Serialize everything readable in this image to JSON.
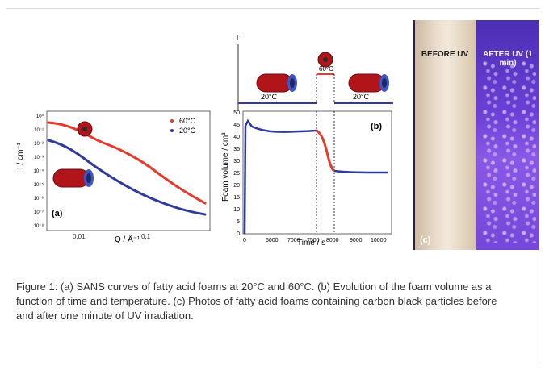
{
  "caption": "Figure 1: (a) SANS curves of fatty acid foams at 20°C and 60°C. (b) Evolution of the foam volume as a function of time and temperature. (c) Photos of fatty acid foams containing carbon black particles before and after one minute of UV irradiation.",
  "colors": {
    "red": "#e53a2c",
    "blue": "#2f3b9a",
    "cyl_red": "#b1151a",
    "cyl_blue": "#3f56c4"
  },
  "panel_a": {
    "label": "(a)",
    "xlabel": "Q / Å⁻¹",
    "ylabel": "I / cm⁻¹",
    "xticks": [
      "0,01",
      "0,1"
    ],
    "yticks": [
      "10⁰",
      "10⁻¹",
      "10⁻²",
      "10⁻³",
      "10⁻⁴",
      "10⁻⁵",
      "10⁻⁶",
      "10⁻⁷",
      "10⁻⁸"
    ],
    "legend": [
      "60°C",
      "20°C"
    ]
  },
  "panel_b": {
    "label": "(b)",
    "xlabel": "Time / s",
    "ylabel": "Foam volume / cm³",
    "xticks": [
      "0",
      "6000",
      "7000",
      "7500",
      "8000",
      "9000",
      "10000"
    ],
    "yticks": [
      "0",
      "5",
      "10",
      "15",
      "20",
      "25",
      "30",
      "35",
      "40",
      "45",
      "50"
    ],
    "temp_axis_label": "T",
    "temp_labels": [
      "20°C",
      "60°C",
      "20°C"
    ]
  },
  "panel_c": {
    "label": "(c)",
    "before": "BEFORE UV",
    "after": "AFTER UV (1 min)"
  },
  "chart_data": [
    {
      "type": "scatter",
      "title": "",
      "xlabel": "Q / Å⁻¹",
      "ylabel": "I / cm⁻¹",
      "xscale": "log",
      "yscale": "log",
      "series": [
        {
          "name": "60°C",
          "x": [
            0.005,
            0.01,
            0.02,
            0.05,
            0.1,
            0.2,
            0.3
          ],
          "y": [
            1.0,
            0.3,
            0.05,
            0.002,
            0.0003,
            5e-05,
            1e-05
          ]
        },
        {
          "name": "20°C",
          "x": [
            0.005,
            0.01,
            0.02,
            0.05,
            0.1,
            0.2,
            0.3
          ],
          "y": [
            0.02,
            0.004,
            0.0008,
            6e-05,
            1e-05,
            4e-07,
            8e-08
          ]
        }
      ]
    },
    {
      "type": "scatter",
      "title": "",
      "xlabel": "Time / s",
      "ylabel": "Foam volume / cm³",
      "xlim": [
        0,
        10000
      ],
      "ylim": [
        0,
        50
      ],
      "series": [
        {
          "name": "",
          "x": [
            0,
            200,
            1000,
            3000,
            5000,
            6000,
            7000,
            7400,
            7600,
            7800,
            8000,
            8500,
            9000,
            10000
          ],
          "y": [
            0,
            45,
            43,
            41.5,
            41,
            41,
            41.5,
            42,
            38,
            30,
            24,
            23,
            23,
            23
          ]
        }
      ]
    }
  ]
}
